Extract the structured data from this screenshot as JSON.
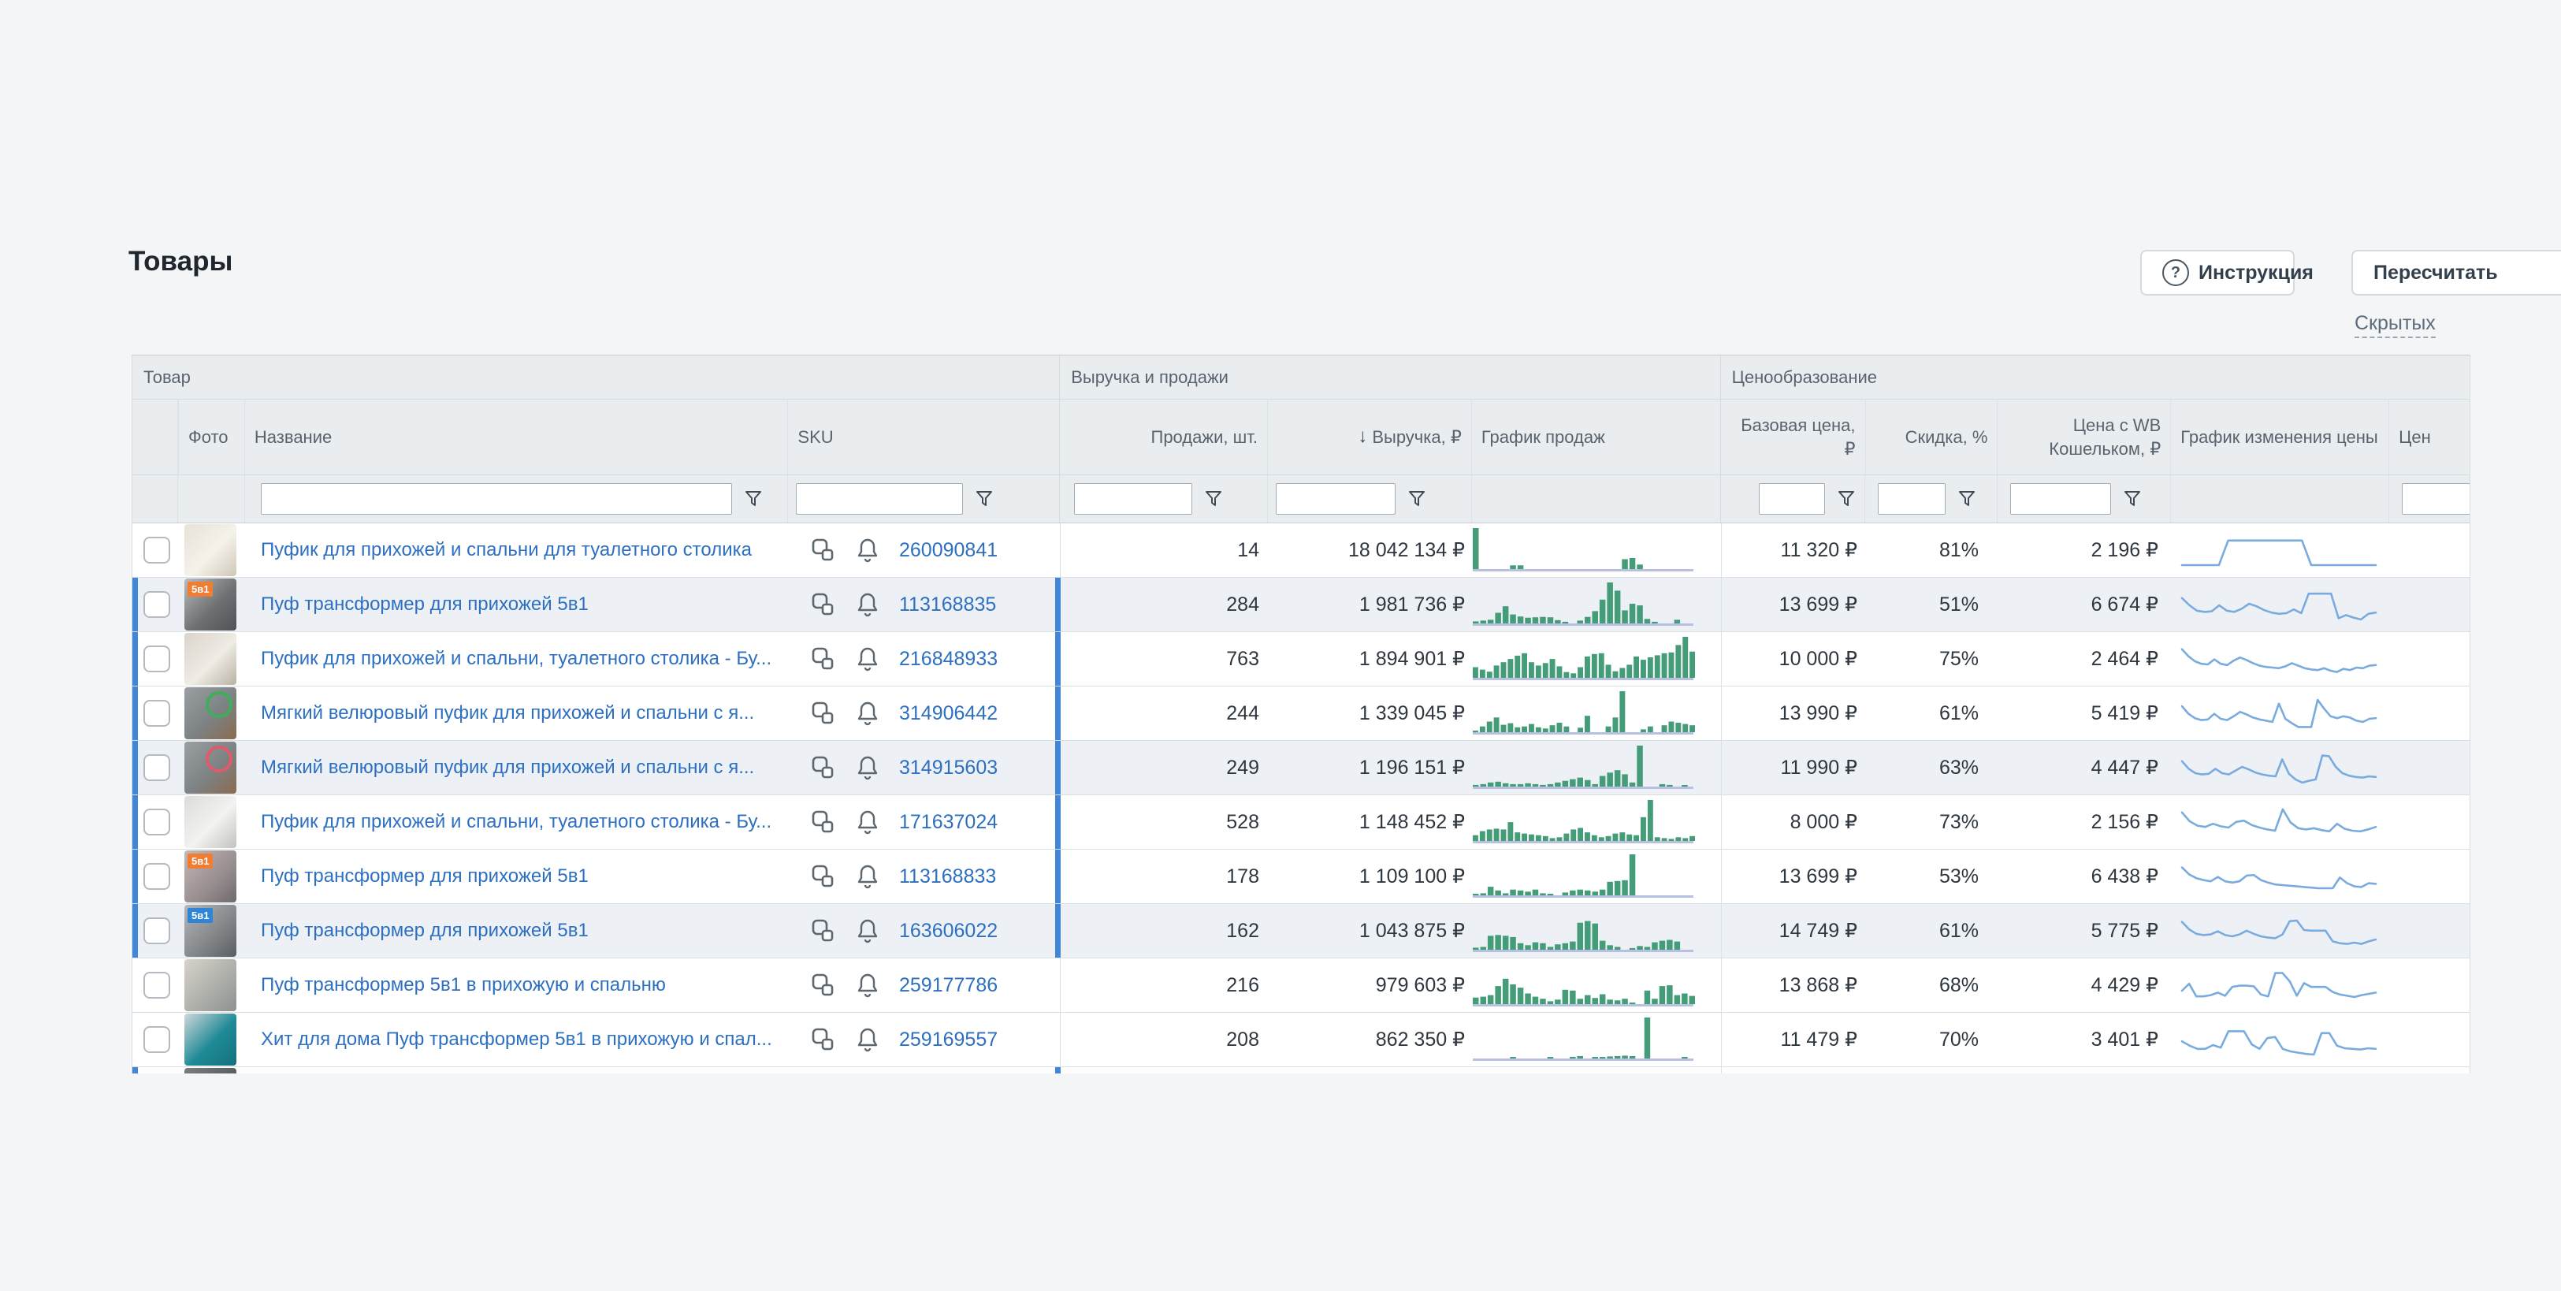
{
  "page": {
    "title": "Товары"
  },
  "toolbar": {
    "instruction_label": "Инструкция",
    "recalculate_label": "Пересчитать",
    "hidden_link": "Скрытых"
  },
  "icons": {
    "help": "?",
    "sort_desc": "↓"
  },
  "colors": {
    "link_blue": "#2d6fc0",
    "highlight_blue": "#4286d6",
    "bar_green": "#449c78",
    "bar_baseline": "#b7c1df",
    "spark_blue": "#79abde",
    "header_bg": "#e9edf0",
    "shaded_row_bg": "#edf1f5",
    "page_bg": "#f4f5f6"
  },
  "table": {
    "groups": {
      "product": "Товар",
      "revenue_sales": "Выручка и продажи",
      "pricing": "Ценообразование"
    },
    "columns": {
      "photo": "Фото",
      "name": "Название",
      "sku": "SKU",
      "sales": "Продажи, шт.",
      "revenue": "Выручка, ₽",
      "sales_chart": "График продаж",
      "base_price": "Базовая цена, ₽",
      "discount": "Скидка, %",
      "wb_price": "Цена с WB Кошельком, ₽",
      "price_chart": "График изменения цены",
      "truncated": "Цен"
    },
    "sort": {
      "column": "revenue",
      "direction": "desc"
    },
    "rows": [
      {
        "name": "Пуфик для прихожей и спальни для туалетного столика",
        "sku": "260090841",
        "sales": "14",
        "revenue": "18 042 134 ₽",
        "base_price": "11 320 ₽",
        "discount": "81%",
        "wb_price": "2 196 ₽",
        "highlighted": false,
        "shaded": false,
        "photo": {
          "bg": [
            "#e8e2d8",
            "#f5f2ea",
            "#cfc7b8"
          ]
        },
        "bars": [
          100,
          0,
          0,
          0,
          0,
          9,
          9,
          0,
          0,
          0,
          0,
          0,
          0,
          0,
          0,
          0,
          0,
          0,
          0,
          0,
          24,
          27,
          11,
          0,
          0,
          0,
          0,
          0,
          0,
          0
        ],
        "spark": [
          10,
          10,
          10,
          10,
          10,
          88,
          88,
          88,
          88,
          88,
          88,
          88,
          88,
          88,
          10,
          10,
          10,
          10,
          10,
          10,
          10,
          10
        ]
      },
      {
        "name": "Пуф трансформер для прихожей 5в1",
        "sku": "113168835",
        "sales": "284",
        "revenue": "1 981 736 ₽",
        "base_price": "13 699 ₽",
        "discount": "51%",
        "wb_price": "6 674 ₽",
        "highlighted": true,
        "shaded": true,
        "photo": {
          "bg": [
            "#b9bcb9",
            "#6e7274",
            "#4e5254"
          ],
          "badge": "5в1",
          "badge_bg": "#f07d32"
        },
        "bars": [
          5,
          7,
          9,
          26,
          42,
          22,
          17,
          14,
          15,
          16,
          15,
          8,
          4,
          0,
          7,
          16,
          30,
          58,
          100,
          80,
          32,
          48,
          44,
          11,
          4,
          0,
          0,
          9,
          0,
          0
        ],
        "spark": [
          78,
          55,
          38,
          34,
          36,
          55,
          38,
          34,
          44,
          60,
          52,
          40,
          32,
          28,
          30,
          42,
          30,
          92,
          92,
          92,
          92,
          14,
          24,
          16,
          10,
          28,
          32
        ]
      },
      {
        "name": "Пуфик для прихожей и спальни, туалетного столика - Бу...",
        "sku": "216848933",
        "sales": "763",
        "revenue": "1 894 901 ₽",
        "base_price": "10 000 ₽",
        "discount": "75%",
        "wb_price": "2 464 ₽",
        "highlighted": true,
        "shaded": false,
        "photo": {
          "bg": [
            "#d9d4cb",
            "#efece5",
            "#b9b2a4"
          ]
        },
        "bars": [
          26,
          20,
          15,
          30,
          38,
          46,
          54,
          60,
          38,
          30,
          36,
          46,
          28,
          14,
          11,
          26,
          52,
          58,
          60,
          32,
          16,
          24,
          32,
          52,
          44,
          50,
          55,
          60,
          62,
          80,
          100,
          64
        ],
        "spark": [
          88,
          66,
          50,
          42,
          40,
          56,
          42,
          38,
          52,
          62,
          54,
          44,
          36,
          32,
          30,
          28,
          34,
          44,
          36,
          28,
          24,
          22,
          28,
          20,
          16,
          26,
          22,
          30,
          28,
          36,
          38
        ]
      },
      {
        "name": "Мягкий велюровый пуфик для прихожей и спальни с я...",
        "sku": "314906442",
        "sales": "244",
        "revenue": "1 339 045 ₽",
        "base_price": "13 990 ₽",
        "discount": "61%",
        "wb_price": "5 419 ₽",
        "highlighted": true,
        "shaded": false,
        "photo": {
          "bg": [
            "#9aa0a2",
            "#7d8284",
            "#8a6b4e"
          ],
          "ring": "#3fae5a"
        },
        "bars": [
          4,
          14,
          26,
          36,
          18,
          22,
          12,
          14,
          20,
          12,
          9,
          17,
          23,
          14,
          0,
          11,
          40,
          0,
          0,
          14,
          36,
          100,
          0,
          0,
          7,
          14,
          0,
          17,
          26,
          23,
          20,
          17
        ],
        "spark": [
          80,
          56,
          42,
          36,
          38,
          56,
          40,
          36,
          48,
          62,
          54,
          44,
          38,
          34,
          30,
          88,
          40,
          26,
          14,
          14,
          14,
          100,
          72,
          48,
          42,
          48,
          44,
          34,
          30,
          40,
          42
        ]
      },
      {
        "name": "Мягкий велюровый пуфик для прихожей и спальни с я...",
        "sku": "314915603",
        "sales": "249",
        "revenue": "1 196 151 ₽",
        "base_price": "11 990 ₽",
        "discount": "63%",
        "wb_price": "4 447 ₽",
        "highlighted": true,
        "shaded": true,
        "photo": {
          "bg": [
            "#9aa0a2",
            "#7d8284",
            "#8a6b4e"
          ],
          "ring": "#e05a6a"
        },
        "bars": [
          4,
          6,
          10,
          12,
          8,
          6,
          6,
          8,
          6,
          4,
          6,
          10,
          14,
          18,
          22,
          16,
          6,
          26,
          34,
          40,
          30,
          10,
          100,
          0,
          0,
          6,
          4,
          0,
          3,
          0
        ],
        "spark": [
          78,
          54,
          40,
          36,
          38,
          54,
          40,
          36,
          48,
          60,
          52,
          42,
          36,
          32,
          30,
          84,
          38,
          20,
          10,
          16,
          20,
          96,
          94,
          60,
          40,
          32,
          28,
          26,
          30,
          28
        ]
      },
      {
        "name": "Пуфик для прихожей и спальни, туалетного столика - Бу...",
        "sku": "171637024",
        "sales": "528",
        "revenue": "1 148 452 ₽",
        "base_price": "8 000 ₽",
        "discount": "73%",
        "wb_price": "2 156 ₽",
        "highlighted": true,
        "shaded": false,
        "photo": {
          "bg": [
            "#dcdcda",
            "#f2f2f0",
            "#c2c2be"
          ]
        },
        "bars": [
          14,
          24,
          28,
          30,
          28,
          46,
          21,
          18,
          16,
          14,
          12,
          7,
          9,
          18,
          28,
          32,
          21,
          14,
          9,
          12,
          18,
          21,
          16,
          14,
          58,
          100,
          9,
          7,
          5,
          9,
          7,
          12
        ],
        "spark": [
          88,
          60,
          46,
          42,
          52,
          44,
          40,
          58,
          62,
          48,
          40,
          34,
          30,
          98,
          56,
          38,
          34,
          38,
          32,
          28,
          52,
          36,
          30,
          28,
          34,
          42
        ]
      },
      {
        "name": "Пуф трансформер для прихожей 5в1",
        "sku": "113168833",
        "sales": "178",
        "revenue": "1 109 100 ₽",
        "base_price": "13 699 ₽",
        "discount": "53%",
        "wb_price": "6 438 ₽",
        "highlighted": true,
        "shaded": false,
        "photo": {
          "bg": [
            "#c3b8b4",
            "#9b9193",
            "#6f6a6d"
          ],
          "badge": "5в1",
          "badge_bg": "#f07d32"
        },
        "bars": [
          3,
          5,
          21,
          12,
          5,
          14,
          12,
          9,
          14,
          5,
          2,
          0,
          7,
          12,
          14,
          12,
          9,
          14,
          33,
          35,
          37,
          100,
          0,
          0,
          0,
          0,
          0,
          0,
          0,
          0
        ],
        "spark": [
          86,
          64,
          52,
          46,
          42,
          56,
          42,
          38,
          42,
          60,
          62,
          46,
          38,
          32,
          30,
          28,
          26,
          24,
          22,
          20,
          20,
          20,
          54,
          36,
          26,
          24,
          36,
          34
        ]
      },
      {
        "name": "Пуф трансформер для прихожей 5в1",
        "sku": "163606022",
        "sales": "162",
        "revenue": "1 043 875 ₽",
        "base_price": "14 749 ₽",
        "discount": "61%",
        "wb_price": "5 775 ₽",
        "highlighted": true,
        "shaded": true,
        "photo": {
          "bg": [
            "#b4b8ba",
            "#85898c",
            "#5a5e61"
          ],
          "badge": "5в1",
          "badge_bg": "#2f84d6"
        },
        "bars": [
          5,
          7,
          34,
          36,
          34,
          31,
          16,
          11,
          18,
          16,
          7,
          13,
          16,
          20,
          66,
          70,
          64,
          22,
          11,
          7,
          0,
          4,
          9,
          7,
          18,
          22,
          24,
          20,
          0,
          0
        ],
        "spark": [
          86,
          62,
          48,
          44,
          46,
          56,
          44,
          40,
          46,
          58,
          48,
          40,
          36,
          34,
          46,
          88,
          90,
          60,
          58,
          58,
          58,
          24,
          18,
          16,
          20,
          16,
          24,
          30
        ]
      },
      {
        "name": "Пуф трансформер 5в1 в прихожую и спальню",
        "sku": "259177786",
        "sales": "216",
        "revenue": "979 603 ₽",
        "base_price": "13 868 ₽",
        "discount": "68%",
        "wb_price": "4 429 ₽",
        "highlighted": false,
        "shaded": false,
        "photo": {
          "bg": [
            "#d8d3c9",
            "#aeb0ab",
            "#8e9190"
          ]
        },
        "bars": [
          16,
          18,
          22,
          44,
          62,
          48,
          40,
          26,
          18,
          13,
          7,
          11,
          35,
          33,
          13,
          22,
          15,
          24,
          11,
          9,
          13,
          2,
          0,
          33,
          13,
          44,
          46,
          22,
          26,
          20
        ],
        "spark": [
          40,
          62,
          22,
          22,
          26,
          34,
          24,
          52,
          56,
          56,
          54,
          28,
          22,
          96,
          96,
          70,
          24,
          64,
          52,
          52,
          52,
          36,
          28,
          24,
          20,
          26,
          30,
          34
        ]
      },
      {
        "name": "Хит для дома Пуф трансформер 5в1 в прихожую и спал...",
        "sku": "259169557",
        "sales": "208",
        "revenue": "862 350 ₽",
        "base_price": "11 479 ₽",
        "discount": "70%",
        "wb_price": "3 401 ₽",
        "highlighted": false,
        "shaded": false,
        "photo": {
          "bg": [
            "#cfd8da",
            "#1f8a96",
            "#16707c"
          ]
        },
        "bars": [
          0,
          0,
          0,
          0,
          0,
          2,
          0,
          0,
          0,
          0,
          3,
          0,
          0,
          4,
          6,
          0,
          3,
          3,
          5,
          6,
          7,
          6,
          0,
          100,
          0,
          0,
          0,
          0,
          2,
          0
        ],
        "spark": [
          52,
          38,
          28,
          28,
          40,
          32,
          84,
          84,
          84,
          42,
          28,
          62,
          66,
          28,
          20,
          16,
          12,
          10,
          78,
          78,
          38,
          30,
          28,
          26,
          30,
          28
        ]
      },
      {
        "name": "",
        "sku": "",
        "sales": "",
        "revenue": "",
        "base_price": "",
        "discount": "",
        "wb_price": "",
        "highlighted": true,
        "shaded": false,
        "photo": {
          "bg": [
            "#7a7e80",
            "#5a5e60",
            "#46494b"
          ]
        },
        "bars": [],
        "spark": []
      }
    ]
  }
}
